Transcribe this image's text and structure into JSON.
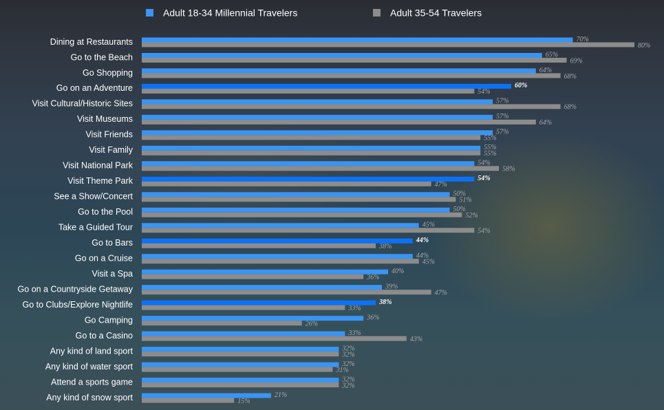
{
  "chart_data": {
    "type": "hbar",
    "categories": [
      "Dining at Restaurants",
      "Go to the Beach",
      "Go Shopping",
      "Go on an Adventure",
      "Visit Cultural/Historic Sites",
      "Visit Museums",
      "Visit Friends",
      "Visit Family",
      "Visit National Park",
      "Visit Theme Park",
      "See a Show/Concert",
      "Go to the Pool",
      "Take a Guided Tour",
      "Go to Bars",
      "Go on a Cruise",
      "Visit a Spa",
      "Go on a Countryside Getaway",
      "Go to Clubs/Explore Nightlife",
      "Go Camping",
      "Go to a Casino",
      "Any kind of land sport",
      "Any kind of water sport",
      "Attend a sports game",
      "Any kind of snow sport"
    ],
    "series": [
      {
        "name": "Adult 18-34 Millennial Travelers",
        "color": "#3a94f2",
        "colors": [
          "#3a94f2",
          "#3a94f2",
          "#3a94f2",
          "#0b72f7",
          "#3a94f2",
          "#3a94f2",
          "#3a94f2",
          "#3a94f2",
          "#3a94f2",
          "#0b72f7",
          "#3a94f2",
          "#3a94f2",
          "#3a94f2",
          "#0b72f7",
          "#3a94f2",
          "#3a94f2",
          "#3a94f2",
          "#0b72f7",
          "#3a94f2",
          "#3a94f2",
          "#3a94f2",
          "#3a94f2",
          "#3a94f2",
          "#3a94f2"
        ],
        "values": [
          70,
          65,
          64,
          60,
          57,
          57,
          57,
          55,
          54,
          54,
          50,
          50,
          45,
          44,
          44,
          40,
          39,
          38,
          36,
          33,
          32,
          32,
          32,
          21
        ],
        "value_labels": [
          "70%",
          "65%",
          "64%",
          "60%",
          "57%",
          "57%",
          "57%",
          "55%",
          "54%",
          "54%",
          "50%",
          "50%",
          "45%",
          "44%",
          "44%",
          "40%",
          "39%",
          "38%",
          "36%",
          "33%",
          "32%",
          "32%",
          "32%",
          "21%"
        ]
      },
      {
        "name": "Adult 35-54 Travelers",
        "color": "#8c8c8c",
        "values": [
          80,
          69,
          68,
          54,
          68,
          64,
          55,
          55,
          58,
          47,
          51,
          52,
          54,
          38,
          45,
          36,
          47,
          33,
          26,
          43,
          32,
          31,
          32,
          15
        ],
        "value_labels": [
          "80%",
          "69%",
          "68%",
          "54%",
          "68%",
          "64%",
          "55%",
          "55%",
          "58%",
          "47%",
          "51%",
          "52%",
          "54%",
          "38%",
          "45%",
          "36%",
          "47%",
          "33%",
          "26%",
          "43%",
          "32%",
          "31%",
          "32%",
          "15%"
        ]
      }
    ],
    "xlim": [
      0,
      85
    ]
  }
}
